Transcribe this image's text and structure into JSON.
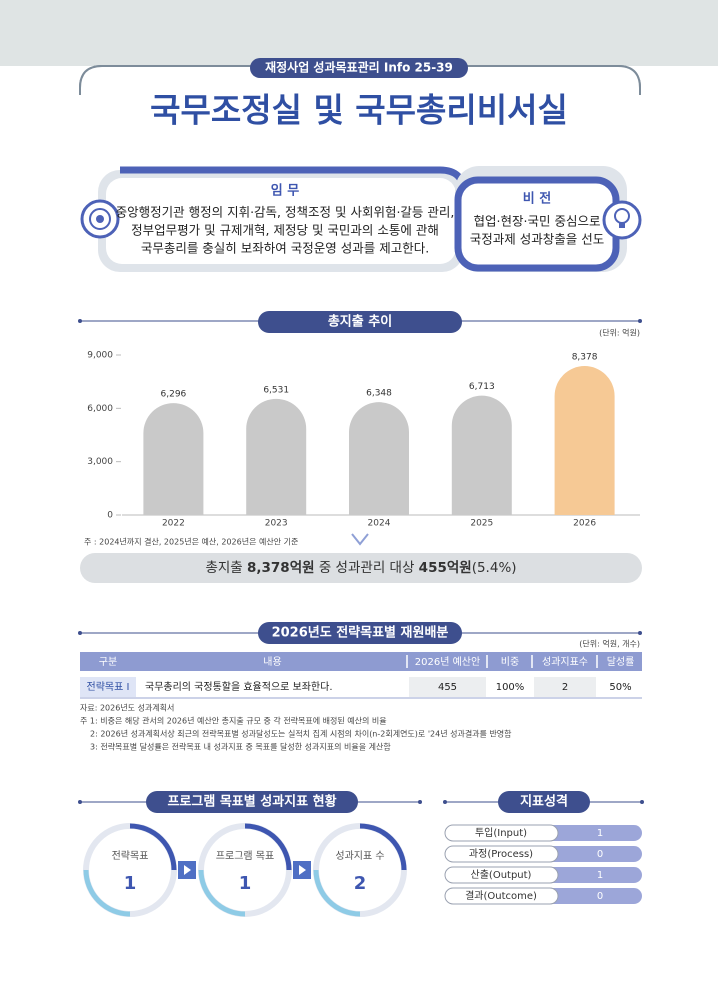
{
  "header": {
    "badge": "재정사업 성과목표관리 Info 25-39",
    "title": "국무조정실 및 국무총리비서실"
  },
  "mission": {
    "title": "임 무",
    "lines": [
      "중앙행정기관 행정의 지휘·감독, 정책조정 및 사회위험·갈등 관리,",
      "정부업무평가 및 규제개혁, 제정당 및 국민과의 소통에 관해",
      "국무총리를 충실히 보좌하여 국정운영 성과를 제고한다."
    ]
  },
  "vision": {
    "title": "비 전",
    "lines": [
      "협업·현장·국민 중심으로",
      "국정과제 성과창출을 선도"
    ]
  },
  "chart_data": {
    "type": "bar",
    "title": "총지출 추이",
    "unit": "(단위: 억원)",
    "categories": [
      "2022",
      "2023",
      "2024",
      "2025",
      "2026"
    ],
    "values": [
      6296,
      6531,
      6348,
      6713,
      8378
    ],
    "value_labels": [
      "6,296",
      "6,531",
      "6,348",
      "6,713",
      "8,378"
    ],
    "colors": [
      "#c9c9c9",
      "#c9c9c9",
      "#c9c9c9",
      "#c9c9c9",
      "#f6c995"
    ],
    "ylim": [
      0,
      9000
    ],
    "yticks": [
      0,
      {
        "value": 3000,
        "label": "3,000"
      },
      {
        "value": 6000,
        "label": "6,000"
      },
      {
        "value": 9000,
        "label": "9,000"
      }
    ],
    "note": "주 : 2024년까지 결산, 2025년은 예산, 2026년은 예산안 기준"
  },
  "summary": {
    "parts": [
      "총지출",
      "8,378억원",
      "중 성과관리 대상",
      "455억원",
      "(5.4%)"
    ]
  },
  "table": {
    "title": "2026년도 전략목표별 재원배분",
    "unit": "(단위: 억원, 개수)",
    "headers": [
      "구분",
      "내용",
      "2026년 예산안",
      "비중",
      "성과지표수",
      "달성률"
    ],
    "rows": [
      [
        "전략목표 Ⅰ",
        "국무총리의 국정통할을 효율적으로 보좌한다.",
        "455",
        "100%",
        "2",
        "50%"
      ]
    ],
    "notes": [
      "자료: 2026년도 성과계획서",
      "주 1: 비중은 해당 관서의 2026년 예산안 총지출 규모 중 각 전략목표에 배정된 예산의 비율",
      "2: 2026년 성과계획서상 최근의 전략목표별 성과달성도는 실적치 집계 시점의 차이(n-2회계연도)로 '24년 성과결과를 반영함",
      "3: 전략목표별 달성률은 전략목표 내 성과지표 중 목표를 달성한 성과지표의 비율을 계산함"
    ]
  },
  "program": {
    "title": "프로그램 목표별 성과지표 현황",
    "steps": [
      {
        "label": "전략목표",
        "value": 1
      },
      {
        "label": "프로그램 목표",
        "value": 1
      },
      {
        "label": "성과지표 수",
        "value": 2
      }
    ]
  },
  "indicators": {
    "title": "지표성격",
    "rows": [
      {
        "label": "투입(Input)",
        "value": 1
      },
      {
        "label": "과정(Process)",
        "value": 0
      },
      {
        "label": "산출(Output)",
        "value": 1
      },
      {
        "label": "결과(Outcome)",
        "value": 0
      }
    ]
  }
}
